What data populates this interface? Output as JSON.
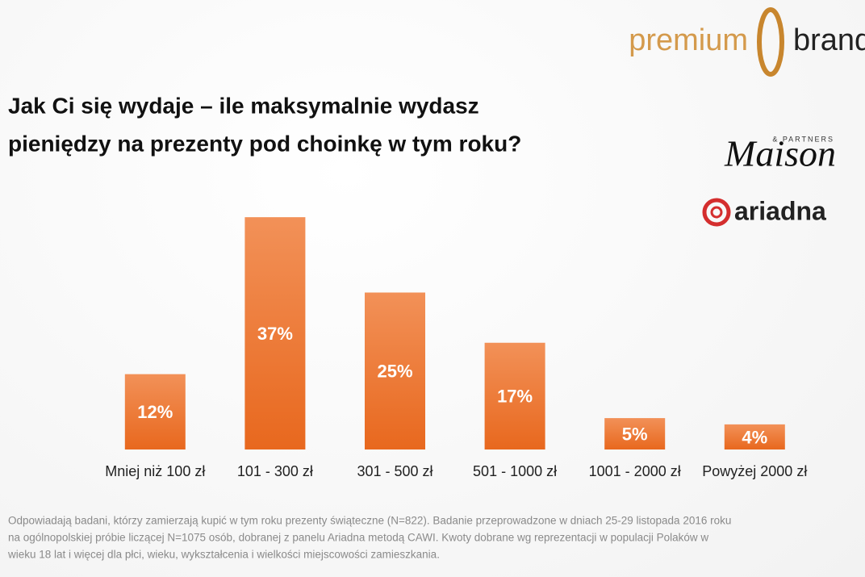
{
  "chart_data": {
    "type": "bar",
    "title": [
      "Jak Ci się wydaje – ile maksymalnie wydasz",
      "pieniędzy na prezenty pod choinkę w tym roku?"
    ],
    "categories": [
      "Mniej niż 100 zł",
      "101 - 300 zł",
      "301 - 500 zł",
      "501 - 1000 zł",
      "1001 - 2000 zł",
      "Powyżej 2000 zł"
    ],
    "values": [
      12,
      37,
      25,
      17,
      5,
      4
    ],
    "value_labels": [
      "12%",
      "37%",
      "25%",
      "17%",
      "5%",
      "4%"
    ],
    "color": "#ec7433"
  },
  "logos": {
    "premium": "premium",
    "brand": "brand",
    "partners": "& PARTNERS",
    "maison": "Maison",
    "ariadna": "ariadna"
  },
  "footnote": [
    "Odpowiadają badani, którzy zamierzają kupić w tym roku prezenty świąteczne (N=822). Badanie przeprowadzone w dniach 25-29 listopada 2016 roku",
    "na ogólnopolskiej próbie liczącej N=1075 osób, dobranej z panelu Ariadna metodą CAWI. Kwoty dobrane wg reprezentacji w populacji Polaków w",
    "wieku 18 lat i więcej dla płci, wieku, wykształcenia i wielkości miejscowości zamieszkania."
  ]
}
